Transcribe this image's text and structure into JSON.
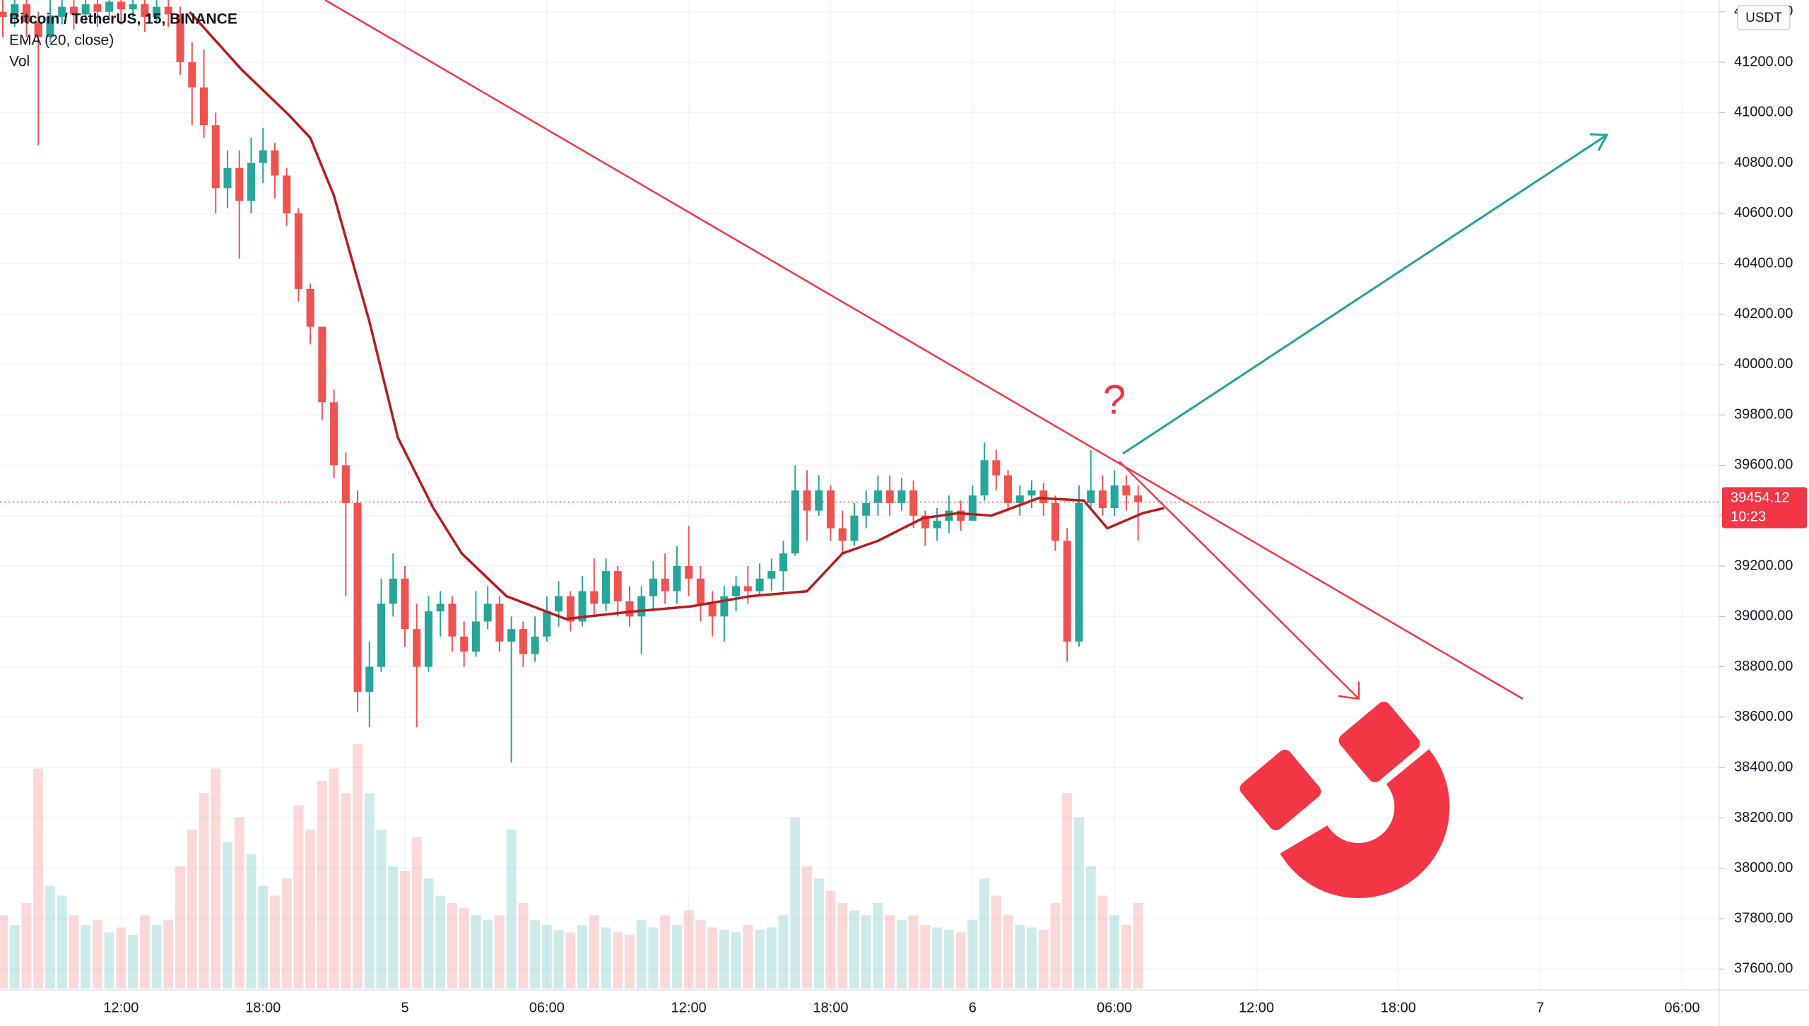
{
  "chart_data": {
    "type": "candlestick",
    "title": "Bitcoin / TetherUS, 15, BINANCE",
    "up_color": "#26a69a",
    "down_color": "#ef5350",
    "x": [
      7,
      7.5,
      8,
      8.5,
      9,
      9.5,
      10,
      10.5,
      11,
      11.5,
      12,
      12.5,
      13,
      13.5,
      14,
      14.5,
      15,
      15.5,
      16,
      16.5,
      17,
      17.5,
      18,
      18.5,
      19,
      19.5,
      20,
      20.5,
      21,
      21.5,
      22,
      22.5,
      23,
      23.5,
      24,
      24.5,
      25,
      25.5,
      26,
      26.5,
      27,
      27.5,
      28,
      28.5,
      29,
      29.5,
      30,
      30.5,
      31,
      31.5,
      32,
      32.5,
      33,
      33.5,
      34,
      34.5,
      35,
      35.5,
      36,
      36.5,
      37,
      37.5,
      38,
      38.5,
      39,
      39.5,
      40,
      40.5,
      41,
      41.5,
      42,
      42.5,
      43,
      43.5,
      44,
      44.5,
      45,
      45.5,
      46,
      46.5,
      47,
      47.5,
      48,
      48.5,
      49,
      49.5,
      50,
      50.5,
      51,
      51.5,
      52,
      52.5,
      53,
      53.5,
      54,
      54.5,
      55
    ],
    "candles": [
      [
        41400,
        41460,
        41300,
        41380
      ],
      [
        41380,
        41480,
        41340,
        41430
      ],
      [
        41430,
        41470,
        41300,
        41360
      ],
      [
        41360,
        41400,
        40870,
        41300
      ],
      [
        41300,
        41450,
        41280,
        41380
      ],
      [
        41380,
        41480,
        41350,
        41420
      ],
      [
        41420,
        41470,
        41330,
        41390
      ],
      [
        41390,
        41480,
        41360,
        41430
      ],
      [
        41430,
        41470,
        41340,
        41400
      ],
      [
        41400,
        41490,
        41380,
        41440
      ],
      [
        41440,
        41470,
        41350,
        41410
      ],
      [
        41410,
        41480,
        41380,
        41430
      ],
      [
        41430,
        41460,
        41320,
        41380
      ],
      [
        41380,
        41470,
        41360,
        41420
      ],
      [
        41420,
        41460,
        41340,
        41390
      ],
      [
        41390,
        41420,
        41150,
        41200
      ],
      [
        41200,
        41280,
        40950,
        41100
      ],
      [
        41100,
        41250,
        40900,
        40950
      ],
      [
        40950,
        41000,
        40600,
        40700
      ],
      [
        40700,
        40850,
        40620,
        40780
      ],
      [
        40780,
        40850,
        40420,
        40650
      ],
      [
        40650,
        40900,
        40600,
        40800
      ],
      [
        40800,
        40940,
        40720,
        40850
      ],
      [
        40850,
        40880,
        40660,
        40750
      ],
      [
        40750,
        40780,
        40550,
        40600
      ],
      [
        40600,
        40620,
        40250,
        40300
      ],
      [
        40300,
        40320,
        40080,
        40150
      ],
      [
        40150,
        40150,
        39780,
        39850
      ],
      [
        39850,
        39900,
        39550,
        39600
      ],
      [
        39600,
        39650,
        39080,
        39450
      ],
      [
        39450,
        39500,
        38620,
        38700
      ],
      [
        38700,
        38900,
        38560,
        38800
      ],
      [
        38800,
        39150,
        38780,
        39050
      ],
      [
        39050,
        39250,
        39000,
        39150
      ],
      [
        39150,
        39200,
        38880,
        38950
      ],
      [
        38950,
        39050,
        38560,
        38800
      ],
      [
        38800,
        39080,
        38780,
        39020
      ],
      [
        39020,
        39100,
        38920,
        39050
      ],
      [
        39050,
        39080,
        38860,
        38920
      ],
      [
        38920,
        38980,
        38800,
        38860
      ],
      [
        38860,
        39100,
        38840,
        38980
      ],
      [
        38980,
        39120,
        38950,
        39050
      ],
      [
        39050,
        39080,
        38860,
        38900
      ],
      [
        38900,
        39000,
        38420,
        38950
      ],
      [
        38950,
        38980,
        38800,
        38850
      ],
      [
        38850,
        39000,
        38820,
        38920
      ],
      [
        38920,
        39080,
        38900,
        39020
      ],
      [
        39020,
        39140,
        38960,
        39080
      ],
      [
        39080,
        39100,
        38940,
        38980
      ],
      [
        38980,
        39160,
        38960,
        39100
      ],
      [
        39100,
        39230,
        39000,
        39050
      ],
      [
        39050,
        39230,
        39020,
        39180
      ],
      [
        39180,
        39200,
        39000,
        39060
      ],
      [
        39060,
        39120,
        38960,
        39000
      ],
      [
        39000,
        39120,
        38850,
        39080
      ],
      [
        39080,
        39220,
        39020,
        39150
      ],
      [
        39150,
        39250,
        39050,
        39100
      ],
      [
        39100,
        39280,
        39050,
        39200
      ],
      [
        39200,
        39360,
        39080,
        39150
      ],
      [
        39150,
        39200,
        38980,
        39050
      ],
      [
        39050,
        39100,
        38920,
        39000
      ],
      [
        39000,
        39120,
        38900,
        39080
      ],
      [
        39080,
        39160,
        39020,
        39120
      ],
      [
        39120,
        39200,
        39050,
        39100
      ],
      [
        39100,
        39210,
        39080,
        39150
      ],
      [
        39150,
        39230,
        39100,
        39180
      ],
      [
        39180,
        39300,
        39100,
        39250
      ],
      [
        39250,
        39600,
        39240,
        39500
      ],
      [
        39500,
        39580,
        39300,
        39420
      ],
      [
        39420,
        39560,
        39400,
        39500
      ],
      [
        39500,
        39520,
        39300,
        39350
      ],
      [
        39350,
        39420,
        39250,
        39300
      ],
      [
        39300,
        39450,
        39280,
        39400
      ],
      [
        39400,
        39500,
        39350,
        39450
      ],
      [
        39450,
        39560,
        39400,
        39500
      ],
      [
        39500,
        39560,
        39400,
        39450
      ],
      [
        39450,
        39550,
        39420,
        39500
      ],
      [
        39500,
        39540,
        39350,
        39400
      ],
      [
        39400,
        39420,
        39280,
        39350
      ],
      [
        39350,
        39430,
        39300,
        39380
      ],
      [
        39380,
        39480,
        39330,
        39420
      ],
      [
        39420,
        39460,
        39340,
        39380
      ],
      [
        39380,
        39520,
        39380,
        39480
      ],
      [
        39480,
        39690,
        39460,
        39620
      ],
      [
        39620,
        39660,
        39500,
        39560
      ],
      [
        39560,
        39580,
        39420,
        39450
      ],
      [
        39450,
        39520,
        39400,
        39480
      ],
      [
        39480,
        39540,
        39430,
        39500
      ],
      [
        39500,
        39530,
        39400,
        39450
      ],
      [
        39450,
        39480,
        39260,
        39300
      ],
      [
        39300,
        39350,
        38820,
        38900
      ],
      [
        38900,
        39520,
        38880,
        39450
      ],
      [
        39450,
        39660,
        39420,
        39500
      ],
      [
        39500,
        39560,
        39400,
        39430
      ],
      [
        39430,
        39580,
        39400,
        39520
      ],
      [
        39520,
        39560,
        39420,
        39480
      ],
      [
        39480,
        39520,
        39300,
        39454.12
      ]
    ],
    "volume": {
      "name": "Vol",
      "values": [
        300,
        260,
        350,
        900,
        420,
        380,
        300,
        260,
        280,
        230,
        250,
        220,
        300,
        260,
        280,
        500,
        650,
        800,
        900,
        600,
        700,
        550,
        420,
        380,
        450,
        750,
        650,
        850,
        900,
        800,
        1000,
        800,
        650,
        500,
        480,
        620,
        450,
        380,
        350,
        330,
        300,
        280,
        300,
        650,
        350,
        280,
        260,
        240,
        230,
        260,
        300,
        250,
        230,
        220,
        280,
        250,
        300,
        260,
        320,
        280,
        250,
        240,
        230,
        260,
        240,
        250,
        300,
        700,
        500,
        450,
        400,
        350,
        320,
        300,
        350,
        300,
        280,
        300,
        260,
        250,
        240,
        230,
        280,
        450,
        380,
        300,
        260,
        250,
        240,
        350,
        800,
        700,
        500,
        380,
        300,
        260,
        350
      ]
    },
    "ema": {
      "name": "EMA (20, close)",
      "color": "#b71c1c",
      "x": [
        14.9,
        17.1,
        19.1,
        20.0,
        21.0,
        22.5,
        23.7,
        25.2,
        26.4,
        28.3,
        30.8,
        33.7,
        36.1,
        38.6,
        41.0,
        42.5,
        44.0,
        45.9,
        47.4,
        48.8,
        50.8,
        52.7,
        53.7,
        55.2,
        56.1
      ],
      "values": [
        41400,
        41170,
        40990,
        40900,
        40670,
        40170,
        39710,
        39430,
        39250,
        39080,
        38990,
        39020,
        39040,
        39080,
        39100,
        39250,
        39300,
        39390,
        39410,
        39400,
        39470,
        39460,
        39350,
        39410,
        39430
      ]
    },
    "last_price": 39454.12,
    "countdown": "10:23",
    "currency": "USDT",
    "annotation": "?",
    "xlim": [
      6.88,
      79.57
    ],
    "ylim": [
      37517,
      41447
    ],
    "xticks": [
      {
        "value": 12,
        "label": "12:00"
      },
      {
        "value": 18,
        "label": "18:00"
      },
      {
        "value": 24,
        "label": "5"
      },
      {
        "value": 30,
        "label": "06:00"
      },
      {
        "value": 36,
        "label": "12:00"
      },
      {
        "value": 42,
        "label": "18:00"
      },
      {
        "value": 48,
        "label": "6"
      },
      {
        "value": 54,
        "label": "06:00"
      },
      {
        "value": 60,
        "label": "12:00"
      },
      {
        "value": 66,
        "label": "18:00"
      },
      {
        "value": 72,
        "label": "7"
      },
      {
        "value": 78,
        "label": "06:00"
      }
    ],
    "yticks": [
      {
        "value": 41400,
        "label": "41400.00"
      },
      {
        "value": 41200,
        "label": "41200.00"
      },
      {
        "value": 41000,
        "label": "41000.00"
      },
      {
        "value": 40800,
        "label": "40800.00"
      },
      {
        "value": 40600,
        "label": "40600.00"
      },
      {
        "value": 40400,
        "label": "40400.00"
      },
      {
        "value": 40200,
        "label": "40200.00"
      },
      {
        "value": 40000,
        "label": "40000.00"
      },
      {
        "value": 39800,
        "label": "39800.00"
      },
      {
        "value": 39600,
        "label": "39600.00"
      },
      {
        "value": 39400,
        "label": "39400.00"
      },
      {
        "value": 39200,
        "label": "39200.00"
      },
      {
        "value": 39000,
        "label": "39000.00"
      },
      {
        "value": 38800,
        "label": "38800.00"
      },
      {
        "value": 38600,
        "label": "38600.00"
      },
      {
        "value": 38400,
        "label": "38400.00"
      },
      {
        "value": 38200,
        "label": "38200.00"
      },
      {
        "value": 38000,
        "label": "38000.00"
      },
      {
        "value": 37800,
        "label": "37800.00"
      },
      {
        "value": 37600,
        "label": "37600.00"
      }
    ],
    "grid": true
  }
}
